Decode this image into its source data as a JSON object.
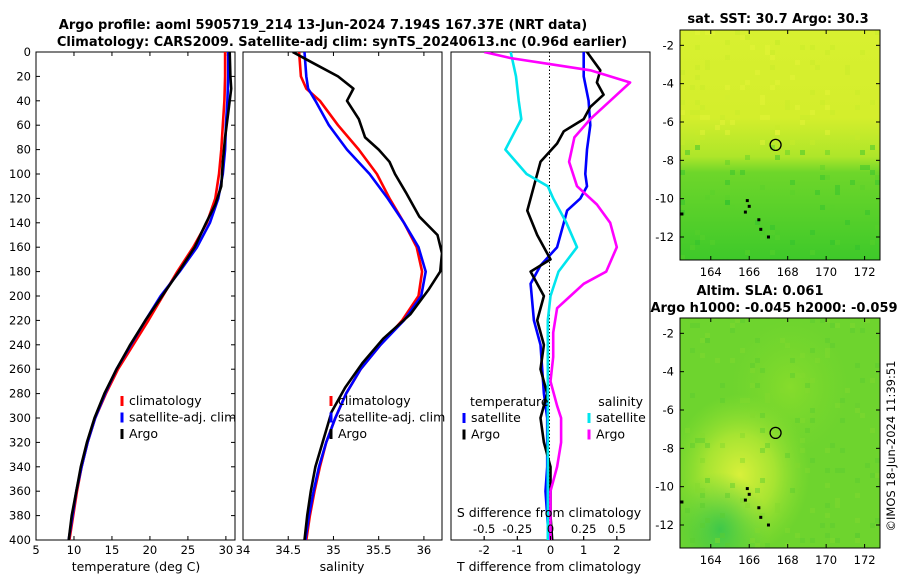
{
  "title": {
    "line1": "Argo profile: aoml 5905719_214 13-Jun-2024 7.194S 167.37E (NRT data)",
    "line2": "Climatology: CARS2009. Satellite-adj clim: synTS_20240613.nc (0.96d earlier)"
  },
  "depth_axis": {
    "ylim": [
      0,
      400
    ],
    "ticks": [
      0,
      20,
      40,
      60,
      80,
      100,
      120,
      140,
      160,
      180,
      200,
      220,
      240,
      260,
      280,
      300,
      320,
      340,
      360,
      380,
      400
    ]
  },
  "chart_data": [
    {
      "id": "temperature",
      "type": "line",
      "xlabel": "temperature (deg C)",
      "xlim": [
        5,
        31.2
      ],
      "xticks": [
        5,
        10,
        15,
        20,
        25,
        30
      ],
      "ylim": [
        0,
        400
      ],
      "series": [
        {
          "name": "climatology",
          "color": "#ff0000",
          "points": [
            [
              29.9,
              0
            ],
            [
              29.9,
              20
            ],
            [
              29.8,
              40
            ],
            [
              29.6,
              60
            ],
            [
              29.4,
              80
            ],
            [
              29.1,
              100
            ],
            [
              28.6,
              120
            ],
            [
              27.5,
              140
            ],
            [
              25.7,
              160
            ],
            [
              23.6,
              180
            ],
            [
              21.7,
              200
            ],
            [
              19.8,
              220
            ],
            [
              17.8,
              240
            ],
            [
              15.8,
              260
            ],
            [
              14.2,
              280
            ],
            [
              12.8,
              300
            ],
            [
              11.8,
              320
            ],
            [
              11.0,
              340
            ],
            [
              10.4,
              360
            ],
            [
              9.9,
              380
            ],
            [
              9.4,
              400
            ]
          ]
        },
        {
          "name": "satellite-adj. clim",
          "color": "#0000ff",
          "points": [
            [
              30.3,
              0
            ],
            [
              30.3,
              20
            ],
            [
              30.2,
              40
            ],
            [
              30.0,
              60
            ],
            [
              29.9,
              80
            ],
            [
              29.6,
              100
            ],
            [
              29.0,
              120
            ],
            [
              27.9,
              140
            ],
            [
              26.2,
              160
            ],
            [
              23.9,
              180
            ],
            [
              21.4,
              200
            ],
            [
              19.4,
              220
            ],
            [
              17.5,
              240
            ],
            [
              15.6,
              260
            ],
            [
              14.1,
              280
            ],
            [
              12.8,
              300
            ],
            [
              11.8,
              320
            ],
            [
              11.0,
              340
            ],
            [
              10.3,
              360
            ],
            [
              9.8,
              380
            ],
            [
              9.3,
              400
            ]
          ]
        },
        {
          "name": "Argo",
          "color": "#000000",
          "points": [
            [
              30.5,
              0
            ],
            [
              30.6,
              20
            ],
            [
              30.7,
              30
            ],
            [
              30.3,
              50
            ],
            [
              29.9,
              70
            ],
            [
              29.6,
              90
            ],
            [
              29.4,
              110
            ],
            [
              28.6,
              125
            ],
            [
              27.4,
              140
            ],
            [
              25.9,
              160
            ],
            [
              23.8,
              180
            ],
            [
              21.6,
              200
            ],
            [
              19.4,
              220
            ],
            [
              17.4,
              240
            ],
            [
              15.6,
              260
            ],
            [
              14.0,
              280
            ],
            [
              12.7,
              300
            ],
            [
              11.7,
              320
            ],
            [
              10.9,
              340
            ],
            [
              10.3,
              360
            ],
            [
              9.7,
              380
            ],
            [
              9.3,
              400
            ]
          ]
        }
      ],
      "legend": [
        "climatology",
        "satellite-adj. clim",
        "Argo"
      ]
    },
    {
      "id": "salinity",
      "type": "line",
      "xlabel": "salinity",
      "xlim": [
        34,
        36.2
      ],
      "xticks": [
        34,
        34.5,
        35,
        35.5,
        36
      ],
      "ylim": [
        0,
        400
      ],
      "series": [
        {
          "name": "climatology",
          "color": "#ff0000",
          "points": [
            [
              34.62,
              0
            ],
            [
              34.64,
              20
            ],
            [
              34.7,
              30
            ],
            [
              34.85,
              40
            ],
            [
              35.05,
              60
            ],
            [
              35.28,
              80
            ],
            [
              35.48,
              100
            ],
            [
              35.62,
              120
            ],
            [
              35.78,
              140
            ],
            [
              35.92,
              160
            ],
            [
              35.98,
              180
            ],
            [
              35.94,
              200
            ],
            [
              35.76,
              220
            ],
            [
              35.52,
              240
            ],
            [
              35.3,
              260
            ],
            [
              35.14,
              280
            ],
            [
              35.02,
              300
            ],
            [
              34.92,
              320
            ],
            [
              34.85,
              340
            ],
            [
              34.79,
              360
            ],
            [
              34.74,
              380
            ],
            [
              34.7,
              400
            ]
          ]
        },
        {
          "name": "satellite-adj. clim",
          "color": "#0000ff",
          "points": [
            [
              34.68,
              0
            ],
            [
              34.7,
              20
            ],
            [
              34.72,
              30
            ],
            [
              34.8,
              40
            ],
            [
              34.95,
              60
            ],
            [
              35.15,
              80
            ],
            [
              35.4,
              100
            ],
            [
              35.6,
              120
            ],
            [
              35.78,
              140
            ],
            [
              35.94,
              160
            ],
            [
              36.02,
              180
            ],
            [
              35.97,
              200
            ],
            [
              35.78,
              220
            ],
            [
              35.52,
              240
            ],
            [
              35.3,
              260
            ],
            [
              35.14,
              280
            ],
            [
              35.02,
              300
            ],
            [
              34.92,
              320
            ],
            [
              34.84,
              340
            ],
            [
              34.78,
              360
            ],
            [
              34.73,
              380
            ],
            [
              34.69,
              400
            ]
          ]
        },
        {
          "name": "Argo",
          "color": "#000000",
          "points": [
            [
              34.55,
              0
            ],
            [
              34.75,
              8
            ],
            [
              35.05,
              20
            ],
            [
              35.22,
              30
            ],
            [
              35.15,
              40
            ],
            [
              35.28,
              55
            ],
            [
              35.35,
              70
            ],
            [
              35.5,
              80
            ],
            [
              35.62,
              90
            ],
            [
              35.68,
              100
            ],
            [
              35.8,
              115
            ],
            [
              35.95,
              135
            ],
            [
              36.15,
              150
            ],
            [
              36.2,
              165
            ],
            [
              36.18,
              180
            ],
            [
              36.05,
              195
            ],
            [
              35.85,
              215
            ],
            [
              35.55,
              235
            ],
            [
              35.32,
              255
            ],
            [
              35.13,
              275
            ],
            [
              34.98,
              295
            ],
            [
              34.88,
              320
            ],
            [
              34.8,
              340
            ],
            [
              34.75,
              360
            ],
            [
              34.71,
              380
            ],
            [
              34.68,
              400
            ]
          ]
        }
      ],
      "legend": [
        "climatology",
        "satellite-adj. clim",
        "Argo"
      ]
    },
    {
      "id": "difference",
      "type": "line",
      "xlabel": "T difference from climatology",
      "xlabel_top": "S difference from climatology",
      "xlim_T": [
        -3,
        3
      ],
      "xticks_T": [
        -2,
        -1,
        0,
        1,
        2
      ],
      "xlim_S": [
        -0.75,
        0.75
      ],
      "xticks_S": [
        -0.5,
        -0.25,
        0,
        0.25,
        0.5
      ],
      "ylim": [
        0,
        400
      ],
      "series": [
        {
          "name": "temperature satellite",
          "color": "#0000ff",
          "axis": "T",
          "points": [
            [
              1.0,
              0
            ],
            [
              1.0,
              20
            ],
            [
              1.15,
              40
            ],
            [
              1.2,
              60
            ],
            [
              1.1,
              80
            ],
            [
              1.05,
              100
            ],
            [
              1.1,
              110
            ],
            [
              0.9,
              120
            ],
            [
              0.5,
              130
            ],
            [
              0.4,
              140
            ],
            [
              0.2,
              160
            ],
            [
              -0.3,
              175
            ],
            [
              -0.6,
              190
            ],
            [
              -0.5,
              220
            ],
            [
              -0.3,
              240
            ],
            [
              -0.25,
              260
            ],
            [
              -0.2,
              280
            ],
            [
              -0.1,
              300
            ],
            [
              -0.1,
              320
            ],
            [
              -0.1,
              340
            ],
            [
              -0.15,
              360
            ],
            [
              -0.1,
              380
            ],
            [
              -0.05,
              400
            ]
          ]
        },
        {
          "name": "temperature Argo",
          "color": "#000000",
          "axis": "T",
          "points": [
            [
              1.1,
              0
            ],
            [
              1.5,
              15
            ],
            [
              1.4,
              25
            ],
            [
              1.6,
              35
            ],
            [
              1.2,
              45
            ],
            [
              1.0,
              55
            ],
            [
              0.4,
              65
            ],
            [
              0.2,
              75
            ],
            [
              -0.3,
              90
            ],
            [
              -0.5,
              110
            ],
            [
              -0.7,
              130
            ],
            [
              -0.4,
              150
            ],
            [
              0.0,
              170
            ],
            [
              -0.6,
              180
            ],
            [
              -0.2,
              200
            ],
            [
              -0.4,
              220
            ],
            [
              -0.2,
              240
            ],
            [
              -0.3,
              260
            ],
            [
              -0.1,
              280
            ],
            [
              -0.3,
              300
            ],
            [
              -0.2,
              320
            ],
            [
              0.0,
              340
            ],
            [
              0.0,
              360
            ],
            [
              0.0,
              380
            ],
            [
              0.05,
              400
            ]
          ]
        },
        {
          "name": "salinity satellite",
          "color": "#00e5ee",
          "axis": "S",
          "points": [
            [
              -0.3,
              0
            ],
            [
              -0.26,
              20
            ],
            [
              -0.24,
              40
            ],
            [
              -0.22,
              55
            ],
            [
              -0.34,
              80
            ],
            [
              -0.18,
              100
            ],
            [
              -0.02,
              110
            ],
            [
              0.02,
              120
            ],
            [
              0.12,
              140
            ],
            [
              0.2,
              160
            ],
            [
              0.06,
              180
            ],
            [
              0.0,
              200
            ],
            [
              -0.02,
              220
            ],
            [
              -0.02,
              240
            ],
            [
              -0.02,
              260
            ],
            [
              -0.02,
              280
            ],
            [
              -0.02,
              300
            ],
            [
              -0.02,
              320
            ],
            [
              -0.02,
              340
            ],
            [
              -0.02,
              360
            ],
            [
              -0.02,
              380
            ],
            [
              -0.02,
              400
            ]
          ]
        },
        {
          "name": "salinity Argo",
          "color": "#ff00ff",
          "axis": "S",
          "points": [
            [
              -0.5,
              0
            ],
            [
              -0.3,
              5
            ],
            [
              0.0,
              10
            ],
            [
              0.3,
              15
            ],
            [
              0.6,
              25
            ],
            [
              0.45,
              40
            ],
            [
              0.3,
              55
            ],
            [
              0.18,
              70
            ],
            [
              0.14,
              90
            ],
            [
              0.2,
              110
            ],
            [
              0.35,
              125
            ],
            [
              0.45,
              140
            ],
            [
              0.5,
              160
            ],
            [
              0.42,
              180
            ],
            [
              0.25,
              190
            ],
            [
              0.15,
              200
            ],
            [
              0.05,
              210
            ],
            [
              0.02,
              230
            ],
            [
              0.02,
              250
            ],
            [
              0.0,
              270
            ],
            [
              0.05,
              290
            ],
            [
              0.08,
              300
            ],
            [
              0.08,
              320
            ],
            [
              0.05,
              340
            ],
            [
              0.0,
              360
            ],
            [
              0.0,
              380
            ],
            [
              0.0,
              400
            ]
          ]
        }
      ],
      "legend_left": {
        "header": "temperature",
        "items": [
          "satellite",
          "Argo"
        ]
      },
      "legend_right": {
        "header": "salinity",
        "items": [
          "satellite",
          "Argo"
        ]
      }
    }
  ],
  "maps": {
    "sst": {
      "title": "sat. SST: 30.7 Argo: 30.3",
      "xticks": [
        164,
        166,
        168,
        170,
        172
      ],
      "yticks": [
        -2,
        -4,
        -6,
        -8,
        -10,
        -12
      ],
      "xlim": [
        162.4,
        172.8
      ],
      "ylim": [
        -13.2,
        -1.2
      ],
      "marker": {
        "lon": 167.37,
        "lat": -7.194
      }
    },
    "sla": {
      "title1": "Altim. SLA: 0.061",
      "title2": "Argo h1000: -0.045 h2000: -0.059",
      "xticks": [
        164,
        166,
        168,
        170,
        172
      ],
      "yticks": [
        -2,
        -4,
        -6,
        -8,
        -10,
        -12
      ],
      "xlim": [
        162.4,
        172.8
      ],
      "ylim": [
        -13.2,
        -1.2
      ],
      "marker": {
        "lon": 167.37,
        "lat": -7.194
      }
    }
  },
  "side_label": "©IMOS 18-Jun-2024 11:39:51"
}
